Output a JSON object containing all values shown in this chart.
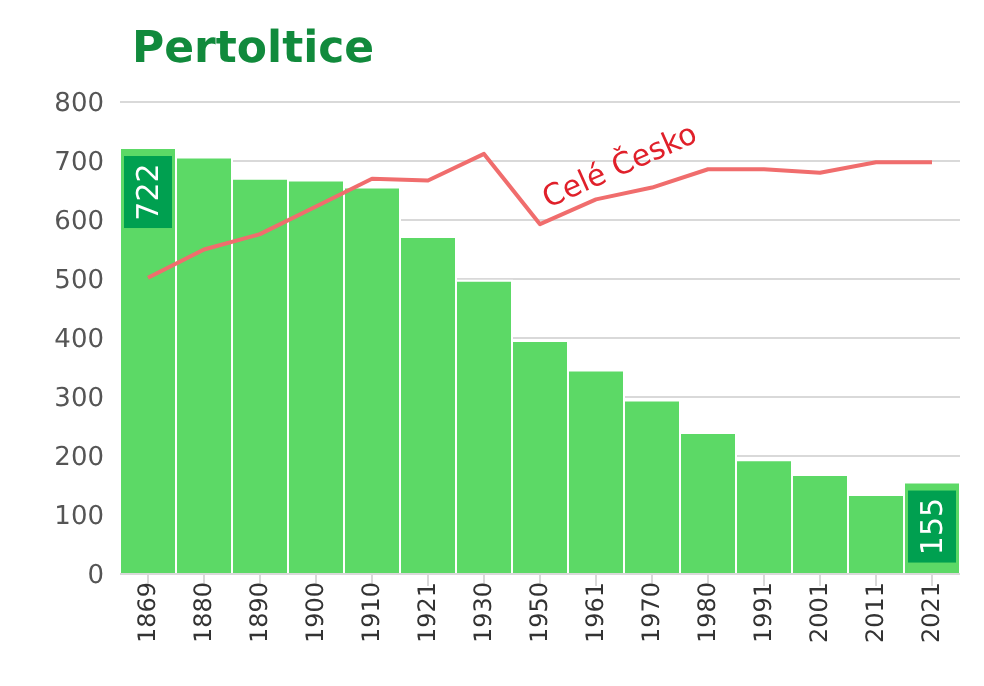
{
  "chart_data": {
    "type": "bar",
    "title": "Pertoltice",
    "categories": [
      "1869",
      "1880",
      "1890",
      "1900",
      "1910",
      "1921",
      "1930",
      "1950",
      "1961",
      "1970",
      "1980",
      "1991",
      "2001",
      "2011",
      "2021"
    ],
    "series": [
      {
        "color": "#5cd966",
        "values": [
          722,
          706,
          670,
          667,
          655,
          571,
          497,
          395,
          345,
          294,
          239,
          193,
          168,
          134,
          155
        ],
        "value_labels": [
          "722",
          null,
          null,
          null,
          null,
          null,
          null,
          null,
          null,
          null,
          null,
          null,
          null,
          null,
          "155"
        ]
      },
      {
        "type": "line",
        "name": "Celé Česko",
        "color": "#f06d6d",
        "values": [
          502,
          550,
          576,
          623,
          670,
          667,
          712,
          593,
          635,
          655,
          686,
          686,
          680,
          698,
          698
        ]
      }
    ],
    "ylim": [
      0,
      800
    ],
    "yticks": [
      0,
      100,
      200,
      300,
      400,
      500,
      600,
      700,
      800
    ],
    "grid": "y",
    "legend": false,
    "marker": "none"
  }
}
